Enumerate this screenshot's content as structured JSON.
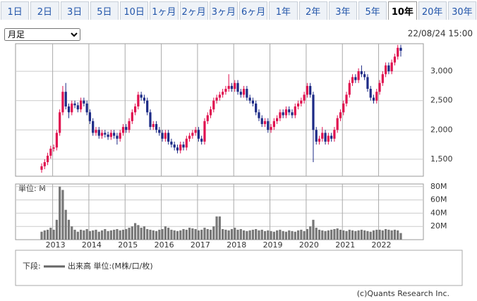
{
  "tabs": [
    "1日",
    "2日",
    "3日",
    "5日",
    "10日",
    "1ヶ月",
    "2ヶ月",
    "3ヶ月",
    "6ヶ月",
    "1年",
    "2年",
    "3年",
    "5年",
    "10年",
    "20年",
    "30年"
  ],
  "selected_tab": 13,
  "period_select": "月足",
  "timestamp": "22/08/24 15:00",
  "chart_data": {
    "type": "candlestick",
    "ylim": [
      1210,
      3470
    ],
    "yticks": [
      {
        "value": 1500,
        "label": "1,500"
      },
      {
        "value": 2000,
        "label": "2,000"
      },
      {
        "value": 2500,
        "label": "2,500"
      },
      {
        "value": 3000,
        "label": "3,000"
      }
    ],
    "up_color": "#e0104f",
    "down_color": "#1c2a86",
    "x_labels": [
      "2013",
      "2014",
      "2015",
      "2016",
      "2017",
      "2018",
      "2019",
      "2020",
      "2021",
      "2022"
    ],
    "candles": [
      [
        1320,
        1430,
        1270,
        1380
      ],
      [
        1380,
        1500,
        1330,
        1450
      ],
      [
        1450,
        1610,
        1400,
        1560
      ],
      [
        1560,
        1730,
        1510,
        1680
      ],
      [
        1680,
        1750,
        1630,
        1700
      ],
      [
        1700,
        2000,
        1650,
        1950
      ],
      [
        1950,
        2350,
        1900,
        2300
      ],
      [
        2300,
        2750,
        2250,
        2650
      ],
      [
        2650,
        2800,
        2350,
        2400
      ],
      [
        2400,
        2450,
        2200,
        2300
      ],
      [
        2300,
        2500,
        2250,
        2450
      ],
      [
        2450,
        2500,
        2370,
        2420
      ],
      [
        2420,
        2470,
        2300,
        2350
      ],
      [
        2350,
        2550,
        2300,
        2500
      ],
      [
        2500,
        2550,
        2400,
        2450
      ],
      [
        2450,
        2500,
        2250,
        2300
      ],
      [
        2300,
        2350,
        2100,
        2150
      ],
      [
        2150,
        2200,
        1900,
        1950
      ],
      [
        1950,
        2050,
        1900,
        2000
      ],
      [
        2000,
        2050,
        1850,
        1900
      ],
      [
        1900,
        2000,
        1850,
        1950
      ],
      [
        1950,
        2000,
        1870,
        1920
      ],
      [
        1920,
        1970,
        1830,
        1880
      ],
      [
        1880,
        2000,
        1830,
        1950
      ],
      [
        1950,
        2000,
        1850,
        1900
      ],
      [
        1900,
        1950,
        1750,
        1850
      ],
      [
        1850,
        2000,
        1800,
        1950
      ],
      [
        1950,
        2100,
        1900,
        2050
      ],
      [
        2050,
        2100,
        1950,
        2000
      ],
      [
        2000,
        2200,
        1950,
        2150
      ],
      [
        2150,
        2350,
        2100,
        2300
      ],
      [
        2300,
        2450,
        2250,
        2400
      ],
      [
        2400,
        2650,
        2350,
        2600
      ],
      [
        2600,
        2650,
        2500,
        2550
      ],
      [
        2550,
        2600,
        2450,
        2500
      ],
      [
        2500,
        2550,
        2250,
        2300
      ],
      [
        2300,
        2350,
        2000,
        2050
      ],
      [
        2050,
        2150,
        2000,
        2100
      ],
      [
        2100,
        2150,
        1950,
        2000
      ],
      [
        2000,
        2050,
        1900,
        1950
      ],
      [
        1950,
        2000,
        1800,
        1850
      ],
      [
        1850,
        2000,
        1800,
        1950
      ],
      [
        1950,
        2000,
        1750,
        1800
      ],
      [
        1800,
        1850,
        1700,
        1750
      ],
      [
        1750,
        1800,
        1650,
        1700
      ],
      [
        1700,
        1750,
        1600,
        1650
      ],
      [
        1650,
        1800,
        1600,
        1750
      ],
      [
        1750,
        1800,
        1650,
        1700
      ],
      [
        1700,
        1900,
        1650,
        1850
      ],
      [
        1850,
        1950,
        1800,
        1900
      ],
      [
        1900,
        2000,
        1850,
        1950
      ],
      [
        1950,
        2050,
        1900,
        2000
      ],
      [
        2000,
        2050,
        1800,
        1850
      ],
      [
        1850,
        1900,
        1750,
        1800
      ],
      [
        1800,
        2200,
        1750,
        2150
      ],
      [
        2150,
        2300,
        2100,
        2250
      ],
      [
        2250,
        2400,
        2200,
        2350
      ],
      [
        2350,
        2550,
        2300,
        2500
      ],
      [
        2500,
        2600,
        2450,
        2550
      ],
      [
        2550,
        2650,
        2500,
        2600
      ],
      [
        2600,
        2700,
        2550,
        2650
      ],
      [
        2650,
        2750,
        2600,
        2700
      ],
      [
        2700,
        2950,
        2650,
        2750
      ],
      [
        2750,
        2800,
        2650,
        2700
      ],
      [
        2700,
        2850,
        2650,
        2800
      ],
      [
        2800,
        2850,
        2600,
        2650
      ],
      [
        2650,
        2700,
        2550,
        2600
      ],
      [
        2600,
        2750,
        2550,
        2700
      ],
      [
        2700,
        2750,
        2500,
        2550
      ],
      [
        2550,
        2600,
        2450,
        2500
      ],
      [
        2500,
        2550,
        2400,
        2450
      ],
      [
        2450,
        2500,
        2250,
        2300
      ],
      [
        2300,
        2350,
        2150,
        2200
      ],
      [
        2200,
        2250,
        2050,
        2100
      ],
      [
        2100,
        2200,
        2050,
        2150
      ],
      [
        2150,
        2200,
        1950,
        2000
      ],
      [
        2000,
        2100,
        1950,
        2050
      ],
      [
        2050,
        2200,
        2000,
        2150
      ],
      [
        2150,
        2250,
        2100,
        2200
      ],
      [
        2200,
        2350,
        2150,
        2300
      ],
      [
        2300,
        2350,
        2200,
        2250
      ],
      [
        2250,
        2400,
        2200,
        2350
      ],
      [
        2350,
        2400,
        2250,
        2300
      ],
      [
        2300,
        2350,
        2200,
        2250
      ],
      [
        2250,
        2450,
        2200,
        2400
      ],
      [
        2400,
        2500,
        2350,
        2450
      ],
      [
        2450,
        2550,
        2400,
        2500
      ],
      [
        2500,
        2650,
        2450,
        2600
      ],
      [
        2600,
        2800,
        2550,
        2750
      ],
      [
        2750,
        2800,
        2550,
        2600
      ],
      [
        2600,
        2650,
        1450,
        2000
      ],
      [
        2000,
        2050,
        1750,
        1800
      ],
      [
        1800,
        1900,
        1750,
        1850
      ],
      [
        1850,
        2050,
        1800,
        1950
      ],
      [
        1950,
        2000,
        1750,
        1800
      ],
      [
        1800,
        1950,
        1750,
        1900
      ],
      [
        1900,
        1950,
        1800,
        1850
      ],
      [
        1850,
        2050,
        1800,
        2000
      ],
      [
        2000,
        2250,
        1950,
        2200
      ],
      [
        2200,
        2350,
        2150,
        2300
      ],
      [
        2300,
        2500,
        2250,
        2450
      ],
      [
        2450,
        2650,
        2400,
        2600
      ],
      [
        2600,
        2850,
        2550,
        2800
      ],
      [
        2800,
        2950,
        2750,
        2900
      ],
      [
        2900,
        2950,
        2800,
        2850
      ],
      [
        2850,
        3050,
        2800,
        3000
      ],
      [
        3000,
        3100,
        2900,
        2950
      ],
      [
        2950,
        3000,
        2850,
        2900
      ],
      [
        2900,
        2950,
        2650,
        2700
      ],
      [
        2700,
        2750,
        2500,
        2550
      ],
      [
        2550,
        2600,
        2450,
        2500
      ],
      [
        2500,
        2700,
        2450,
        2650
      ],
      [
        2650,
        2850,
        2600,
        2800
      ],
      [
        2800,
        3000,
        2750,
        2950
      ],
      [
        2950,
        3150,
        2900,
        3100
      ],
      [
        3100,
        3150,
        2950,
        3000
      ],
      [
        3000,
        3200,
        2950,
        3150
      ],
      [
        3150,
        3300,
        3100,
        3250
      ],
      [
        3250,
        3450,
        3200,
        3400
      ],
      [
        3400,
        3450,
        3250,
        3350
      ]
    ],
    "volume": {
      "unit_label": "単位: M",
      "color": "#777777",
      "ylim": [
        0,
        84
      ],
      "yticks": [
        {
          "value": 20,
          "label": "20M"
        },
        {
          "value": 40,
          "label": "40M"
        },
        {
          "value": 60,
          "label": "60M"
        },
        {
          "value": 80,
          "label": "80M"
        }
      ],
      "values": [
        12,
        14,
        15,
        18,
        15,
        30,
        80,
        75,
        45,
        30,
        20,
        15,
        12,
        15,
        14,
        16,
        13,
        14,
        15,
        12,
        14,
        16,
        13,
        14,
        15,
        16,
        14,
        15,
        16,
        18,
        20,
        25,
        22,
        18,
        20,
        16,
        15,
        14,
        13,
        15,
        16,
        20,
        18,
        15,
        14,
        13,
        14,
        16,
        15,
        18,
        17,
        16,
        14,
        15,
        18,
        16,
        15,
        20,
        35,
        35,
        16,
        15,
        14,
        16,
        18,
        15,
        16,
        14,
        13,
        14,
        15,
        16,
        14,
        15,
        13,
        14,
        13,
        12,
        14,
        15,
        13,
        12,
        14,
        13,
        12,
        14,
        15,
        13,
        16,
        20,
        30,
        18,
        15,
        14,
        13,
        14,
        15,
        16,
        17,
        15,
        14,
        13,
        15,
        14,
        13,
        14,
        15,
        14,
        13,
        12,
        14,
        15,
        15,
        14,
        16,
        15,
        14,
        15,
        14,
        10
      ]
    }
  },
  "legend": {
    "prefix": "下段:",
    "label": "出来高 単位:(M株/口/枚)"
  },
  "footer": "(c)Quants Research Inc."
}
